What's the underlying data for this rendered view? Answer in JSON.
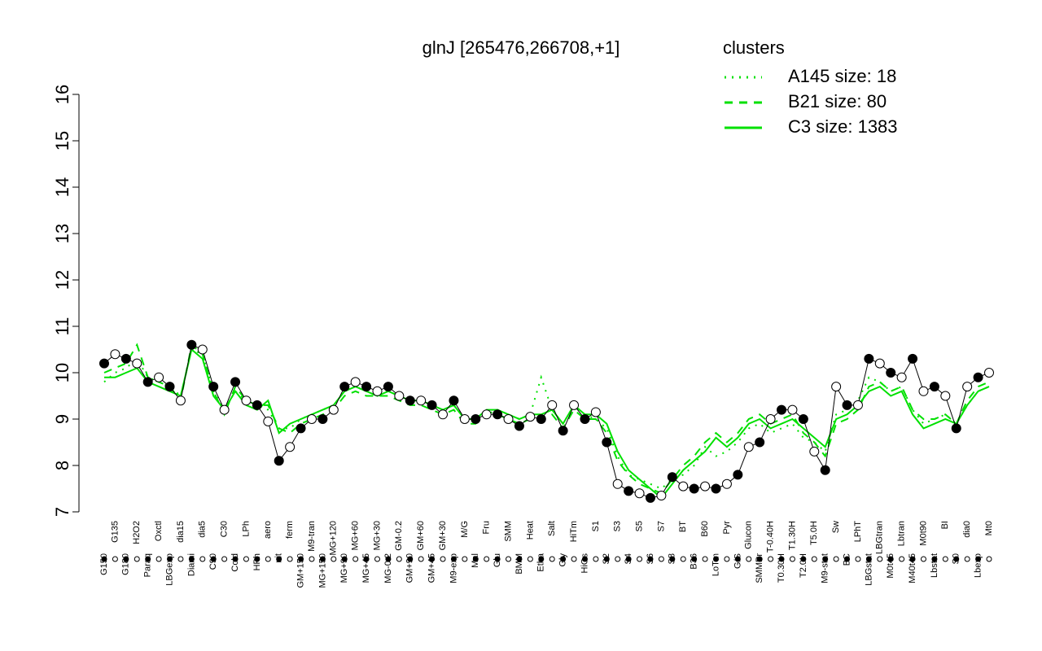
{
  "chart_data": {
    "type": "line",
    "title": "glnJ [265476,266708,+1]",
    "legend_title": "clusters",
    "legend_color": "#00e000",
    "categories": [
      "G150",
      "G135",
      "G180",
      "H2O2",
      "Paraq",
      "Oxctl",
      "LBGexp",
      "dia15",
      "Diami",
      "dia5",
      "C90",
      "C30",
      "Cold",
      "LPh",
      "HPh",
      "aero",
      "nit",
      "ferm",
      "GM+150",
      "M9-tran",
      "MG+150",
      "MG+120",
      "MG+90",
      "MG+60",
      "MG+45",
      "MG+30",
      "MG-0.2",
      "GM-0.2",
      "GM+90",
      "GM+60",
      "GM+45",
      "GM+30",
      "M9-exp",
      "M/G",
      "Mal",
      "Fru",
      "Glu",
      "SMM",
      "BMM",
      "Heat",
      "Etha",
      "Salt",
      "Gly",
      "HiTm",
      "HiOs",
      "S1",
      "S2",
      "S3",
      "S4",
      "S5",
      "S6",
      "S7",
      "S8",
      "BT",
      "B36",
      "B60",
      "LoTm",
      "Pyr",
      "G/S",
      "Glucon",
      "SMMPr",
      "T-0.40H",
      "T0.30H",
      "T1.30H",
      "T2.0H",
      "T5.0H",
      "M9-stat",
      "Sw",
      "BC",
      "LPhT",
      "LBGstat",
      "LBGtran",
      "M0t45",
      "Lbtran",
      "M40t45",
      "M0t90",
      "Lbstat",
      "BI",
      "S0",
      "dia0",
      "Lbexp",
      "Mt0"
    ],
    "values": [
      10.2,
      10.4,
      10.3,
      10.2,
      9.8,
      9.9,
      9.7,
      9.4,
      10.6,
      10.5,
      9.7,
      9.2,
      9.8,
      9.4,
      9.3,
      8.95,
      8.1,
      8.4,
      8.8,
      9.0,
      9.0,
      9.2,
      9.7,
      9.8,
      9.7,
      9.6,
      9.7,
      9.5,
      9.4,
      9.4,
      9.3,
      9.1,
      9.4,
      9.0,
      9.0,
      9.1,
      9.1,
      9.0,
      8.85,
      9.05,
      9.0,
      9.3,
      8.75,
      9.3,
      9.0,
      9.15,
      8.5,
      7.6,
      7.45,
      7.4,
      7.3,
      7.35,
      7.75,
      7.55,
      7.5,
      7.55,
      7.5,
      7.6,
      7.8,
      8.4,
      8.5,
      9.0,
      9.2,
      9.2,
      9.0,
      8.3,
      7.9,
      9.7,
      9.3,
      9.3,
      10.3,
      10.2,
      10.0,
      9.9,
      10.3,
      9.6,
      9.7,
      9.5,
      8.8,
      9.7,
      9.9,
      10.0
    ],
    "series": [
      {
        "name": "A145 size: 18",
        "color": "#00e000",
        "dash": "dotted",
        "values": [
          9.8,
          10.0,
          10.1,
          10.3,
          9.9,
          9.8,
          9.7,
          9.5,
          10.5,
          10.4,
          9.6,
          9.2,
          9.6,
          9.4,
          9.3,
          9.2,
          8.8,
          8.8,
          9.0,
          9.1,
          9.2,
          9.3,
          9.6,
          9.7,
          9.6,
          9.5,
          9.6,
          9.5,
          9.4,
          9.4,
          9.3,
          9.2,
          9.3,
          9.0,
          9.0,
          9.1,
          9.2,
          9.1,
          9.0,
          9.1,
          9.9,
          9.2,
          8.9,
          9.3,
          9.1,
          9.0,
          8.8,
          8.2,
          7.8,
          7.7,
          7.6,
          7.5,
          7.7,
          7.8,
          8.0,
          8.4,
          8.2,
          8.3,
          8.5,
          8.8,
          8.9,
          8.7,
          8.8,
          8.9,
          8.6,
          8.5,
          8.3,
          9.1,
          9.2,
          9.4,
          9.9,
          9.8,
          9.6,
          9.7,
          9.2,
          8.9,
          9.0,
          9.1,
          8.9,
          9.3,
          9.6,
          9.7
        ]
      },
      {
        "name": "B21 size: 80",
        "color": "#00e000",
        "dash": "dashed",
        "values": [
          10.0,
          10.1,
          10.2,
          10.6,
          9.9,
          9.8,
          9.7,
          9.4,
          10.6,
          10.4,
          9.6,
          9.1,
          9.7,
          9.4,
          9.3,
          9.3,
          8.8,
          8.7,
          8.9,
          9.0,
          9.1,
          9.2,
          9.5,
          9.6,
          9.5,
          9.5,
          9.5,
          9.4,
          9.3,
          9.3,
          9.2,
          9.1,
          9.2,
          8.9,
          8.9,
          9.1,
          9.1,
          9.0,
          8.9,
          9.0,
          9.0,
          9.1,
          8.8,
          9.2,
          9.0,
          9.0,
          8.7,
          8.1,
          7.8,
          7.6,
          7.5,
          7.4,
          7.7,
          8.0,
          8.2,
          8.5,
          8.7,
          8.5,
          8.7,
          9.0,
          9.1,
          8.9,
          9.0,
          9.1,
          8.7,
          8.5,
          8.2,
          8.9,
          9.0,
          9.2,
          9.7,
          9.8,
          9.6,
          9.7,
          9.2,
          9.0,
          9.0,
          9.1,
          8.9,
          9.4,
          9.7,
          9.8
        ]
      },
      {
        "name": "C3 size: 1383",
        "color": "#00e000",
        "dash": "solid",
        "values": [
          9.9,
          9.9,
          10.0,
          10.1,
          9.8,
          9.7,
          9.6,
          9.5,
          10.5,
          10.3,
          9.5,
          9.2,
          9.6,
          9.3,
          9.2,
          9.4,
          8.7,
          8.9,
          9.0,
          9.1,
          9.2,
          9.3,
          9.6,
          9.7,
          9.6,
          9.5,
          9.6,
          9.5,
          9.4,
          9.4,
          9.3,
          9.2,
          9.3,
          9.0,
          9.0,
          9.2,
          9.2,
          9.1,
          9.0,
          9.1,
          9.1,
          9.2,
          8.9,
          9.3,
          9.1,
          9.1,
          8.9,
          8.3,
          7.9,
          7.7,
          7.5,
          7.3,
          7.6,
          7.9,
          8.1,
          8.3,
          8.6,
          8.4,
          8.6,
          8.9,
          9.0,
          8.8,
          8.9,
          9.0,
          8.8,
          8.6,
          8.4,
          9.0,
          9.1,
          9.3,
          9.6,
          9.7,
          9.5,
          9.6,
          9.1,
          8.8,
          8.9,
          9.0,
          8.9,
          9.3,
          9.6,
          9.7
        ]
      }
    ],
    "ylim": [
      7,
      16
    ],
    "yticks": [
      7,
      8,
      9,
      10,
      11,
      12,
      13,
      14,
      15,
      16
    ]
  }
}
